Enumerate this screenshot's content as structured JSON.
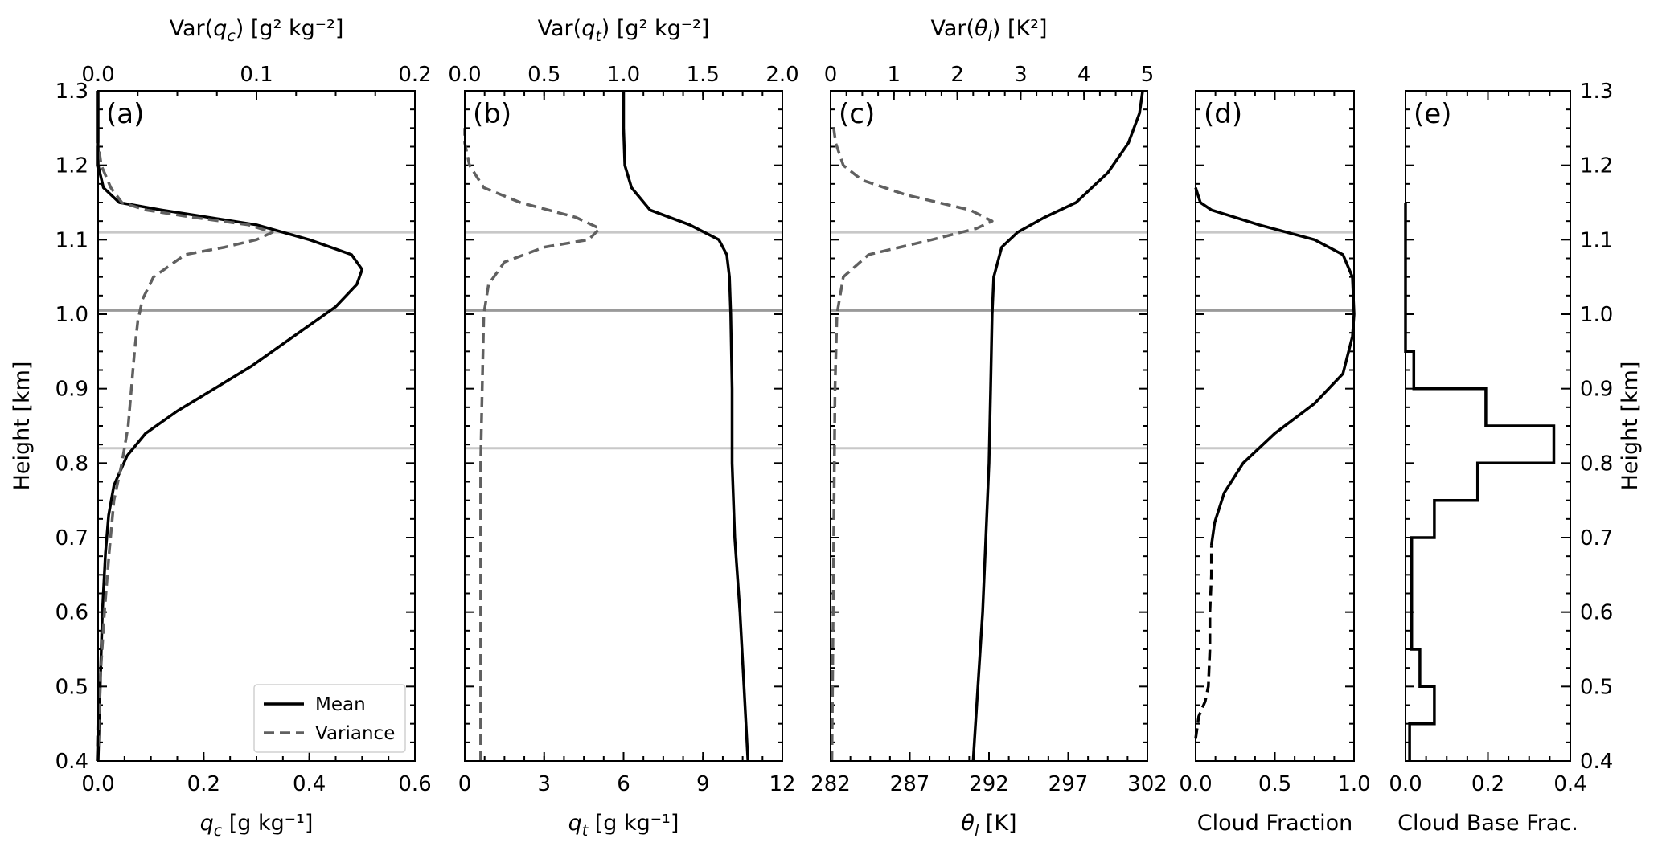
{
  "chart_data": [
    {
      "id": "a",
      "type": "line",
      "panel_label": "(a)",
      "xlabel": "q_c [g kg⁻¹]",
      "x2label": "Var(q_c) [g² kg⁻²]",
      "ylabel": "Height [km]",
      "xlim": [
        0,
        0.6
      ],
      "x2lim": [
        0,
        0.2
      ],
      "ylim": [
        0.4,
        1.3
      ],
      "xticks": [
        "0.0",
        "0.2",
        "0.4",
        "0.6"
      ],
      "x2ticks": [
        "0.0",
        "0.1",
        "0.2"
      ],
      "yticks": [
        "0.4",
        "0.5",
        "0.6",
        "0.7",
        "0.8",
        "0.9",
        "1.0",
        "1.1",
        "1.2",
        "1.3"
      ],
      "legend": {
        "position": "lower-right",
        "entries": [
          "Mean",
          "Variance"
        ]
      },
      "series": [
        {
          "name": "Mean",
          "style": "solid",
          "axis": "bottom",
          "points": [
            [
              0.0,
              0.4
            ],
            [
              0.004,
              0.5
            ],
            [
              0.008,
              0.6
            ],
            [
              0.014,
              0.68
            ],
            [
              0.02,
              0.73
            ],
            [
              0.03,
              0.77
            ],
            [
              0.055,
              0.81
            ],
            [
              0.09,
              0.84
            ],
            [
              0.15,
              0.87
            ],
            [
              0.22,
              0.9
            ],
            [
              0.29,
              0.93
            ],
            [
              0.35,
              0.96
            ],
            [
              0.41,
              0.99
            ],
            [
              0.45,
              1.01
            ],
            [
              0.49,
              1.04
            ],
            [
              0.5,
              1.06
            ],
            [
              0.48,
              1.08
            ],
            [
              0.4,
              1.1
            ],
            [
              0.3,
              1.12
            ],
            [
              0.12,
              1.14
            ],
            [
              0.04,
              1.15
            ],
            [
              0.01,
              1.17
            ],
            [
              0.0,
              1.2
            ],
            [
              0.0,
              1.3
            ]
          ]
        },
        {
          "name": "Variance",
          "style": "dashed",
          "axis": "top",
          "points": [
            [
              0.0,
              0.42
            ],
            [
              0.001,
              0.5
            ],
            [
              0.004,
              0.6
            ],
            [
              0.007,
              0.68
            ],
            [
              0.01,
              0.75
            ],
            [
              0.015,
              0.8
            ],
            [
              0.019,
              0.85
            ],
            [
              0.021,
              0.9
            ],
            [
              0.023,
              0.95
            ],
            [
              0.025,
              0.99
            ],
            [
              0.028,
              1.02
            ],
            [
              0.035,
              1.05
            ],
            [
              0.055,
              1.08
            ],
            [
              0.08,
              1.09
            ],
            [
              0.1,
              1.1
            ],
            [
              0.11,
              1.11
            ],
            [
              0.095,
              1.12
            ],
            [
              0.06,
              1.13
            ],
            [
              0.03,
              1.14
            ],
            [
              0.015,
              1.15
            ],
            [
              0.008,
              1.17
            ],
            [
              0.002,
              1.2
            ],
            [
              0.0,
              1.23
            ]
          ]
        }
      ],
      "hlines": [
        1.11,
        1.005,
        0.82
      ]
    },
    {
      "id": "b",
      "type": "line",
      "panel_label": "(b)",
      "xlabel": "q_t [g kg⁻¹]",
      "x2label": "Var(q_t) [g² kg⁻²]",
      "xlim": [
        0,
        12
      ],
      "x2lim": [
        0,
        2.0
      ],
      "ylim": [
        0.4,
        1.3
      ],
      "xticks": [
        "0",
        "3",
        "6",
        "9",
        "12"
      ],
      "x2ticks": [
        "0.0",
        "0.5",
        "1.0",
        "1.5",
        "2.0"
      ],
      "series": [
        {
          "name": "Mean",
          "style": "solid",
          "axis": "bottom",
          "points": [
            [
              10.7,
              0.4
            ],
            [
              10.55,
              0.5
            ],
            [
              10.4,
              0.6
            ],
            [
              10.2,
              0.7
            ],
            [
              10.1,
              0.8
            ],
            [
              10.1,
              0.9
            ],
            [
              10.05,
              1.0
            ],
            [
              10.0,
              1.05
            ],
            [
              9.9,
              1.08
            ],
            [
              9.6,
              1.1
            ],
            [
              8.5,
              1.12
            ],
            [
              7.0,
              1.14
            ],
            [
              6.3,
              1.17
            ],
            [
              6.05,
              1.2
            ],
            [
              6.0,
              1.25
            ],
            [
              6.0,
              1.3
            ]
          ]
        },
        {
          "name": "Variance",
          "style": "dashed",
          "axis": "top",
          "points": [
            [
              0.1,
              0.4
            ],
            [
              0.1,
              0.5
            ],
            [
              0.1,
              0.6
            ],
            [
              0.1,
              0.7
            ],
            [
              0.1,
              0.8
            ],
            [
              0.11,
              0.9
            ],
            [
              0.12,
              1.0
            ],
            [
              0.15,
              1.04
            ],
            [
              0.25,
              1.07
            ],
            [
              0.5,
              1.09
            ],
            [
              0.78,
              1.1
            ],
            [
              0.85,
              1.115
            ],
            [
              0.7,
              1.13
            ],
            [
              0.35,
              1.15
            ],
            [
              0.12,
              1.17
            ],
            [
              0.03,
              1.2
            ],
            [
              0.0,
              1.23
            ],
            [
              0.0,
              1.25
            ]
          ]
        }
      ],
      "hlines": [
        1.11,
        1.005,
        0.82
      ]
    },
    {
      "id": "c",
      "type": "line",
      "panel_label": "(c)",
      "xlabel": "θ_l [K]",
      "x2label": "Var(θ_l) [K²]",
      "xlim": [
        282,
        302
      ],
      "x2lim": [
        0,
        5
      ],
      "ylim": [
        0.4,
        1.3
      ],
      "xticks": [
        "282",
        "287",
        "292",
        "297",
        "302"
      ],
      "x2ticks": [
        "0",
        "1",
        "2",
        "3",
        "4",
        "5"
      ],
      "series": [
        {
          "name": "Mean",
          "style": "solid",
          "axis": "bottom",
          "points": [
            [
              291.0,
              0.4
            ],
            [
              291.3,
              0.5
            ],
            [
              291.6,
              0.6
            ],
            [
              291.8,
              0.7
            ],
            [
              292.0,
              0.8
            ],
            [
              292.1,
              0.9
            ],
            [
              292.2,
              1.0
            ],
            [
              292.3,
              1.05
            ],
            [
              292.8,
              1.09
            ],
            [
              293.8,
              1.11
            ],
            [
              295.5,
              1.13
            ],
            [
              297.5,
              1.15
            ],
            [
              299.5,
              1.19
            ],
            [
              300.8,
              1.23
            ],
            [
              301.5,
              1.27
            ],
            [
              301.7,
              1.3
            ]
          ]
        },
        {
          "name": "Variance",
          "style": "dashed",
          "axis": "top",
          "points": [
            [
              0.02,
              0.4
            ],
            [
              0.03,
              0.5
            ],
            [
              0.04,
              0.6
            ],
            [
              0.05,
              0.7
            ],
            [
              0.06,
              0.8
            ],
            [
              0.07,
              0.9
            ],
            [
              0.1,
              1.0
            ],
            [
              0.2,
              1.05
            ],
            [
              0.6,
              1.08
            ],
            [
              1.6,
              1.1
            ],
            [
              2.3,
              1.115
            ],
            [
              2.55,
              1.125
            ],
            [
              2.2,
              1.14
            ],
            [
              1.2,
              1.16
            ],
            [
              0.5,
              1.18
            ],
            [
              0.2,
              1.2
            ],
            [
              0.08,
              1.23
            ],
            [
              0.05,
              1.25
            ]
          ]
        }
      ],
      "hlines": [
        1.11,
        1.005,
        0.82
      ]
    },
    {
      "id": "d",
      "type": "line",
      "panel_label": "(d)",
      "xlabel": "Cloud Fraction",
      "xlim": [
        0,
        1.0
      ],
      "ylim": [
        0.4,
        1.3
      ],
      "xticks": [
        "0.0",
        "0.5",
        "1.0"
      ],
      "series": [
        {
          "name": "Cloud fraction (dashed)",
          "style": "dashed",
          "points": [
            [
              0.0,
              0.43
            ],
            [
              0.02,
              0.46
            ],
            [
              0.06,
              0.48
            ],
            [
              0.08,
              0.5
            ],
            [
              0.09,
              0.55
            ],
            [
              0.09,
              0.6
            ],
            [
              0.1,
              0.65
            ],
            [
              0.1,
              0.69
            ]
          ]
        },
        {
          "name": "Cloud fraction",
          "style": "solid",
          "points": [
            [
              0.1,
              0.69
            ],
            [
              0.12,
              0.72
            ],
            [
              0.18,
              0.76
            ],
            [
              0.3,
              0.8
            ],
            [
              0.5,
              0.84
            ],
            [
              0.75,
              0.88
            ],
            [
              0.93,
              0.92
            ],
            [
              0.99,
              0.97
            ],
            [
              1.0,
              1.0
            ],
            [
              0.99,
              1.05
            ],
            [
              0.93,
              1.08
            ],
            [
              0.75,
              1.1
            ],
            [
              0.4,
              1.12
            ],
            [
              0.1,
              1.14
            ],
            [
              0.03,
              1.15
            ],
            [
              0.0,
              1.17
            ]
          ]
        }
      ],
      "hlines": [
        1.11,
        1.005,
        0.82
      ]
    },
    {
      "id": "e",
      "type": "step",
      "panel_label": "(e)",
      "xlabel": "Cloud Base Frac.",
      "ylabel": "Height [km]",
      "xlim": [
        0,
        0.4
      ],
      "ylim": [
        0.4,
        1.3
      ],
      "xticks": [
        "0.0",
        "0.2",
        "0.4"
      ],
      "yticks": [
        "0.4",
        "0.5",
        "0.6",
        "0.7",
        "0.8",
        "0.9",
        "1.0",
        "1.1",
        "1.2",
        "1.3"
      ],
      "bins": [
        {
          "y0": 0.4,
          "y1": 0.45,
          "value": 0.01
        },
        {
          "y0": 0.45,
          "y1": 0.5,
          "value": 0.07
        },
        {
          "y0": 0.5,
          "y1": 0.55,
          "value": 0.035
        },
        {
          "y0": 0.55,
          "y1": 0.7,
          "value": 0.015
        },
        {
          "y0": 0.7,
          "y1": 0.75,
          "value": 0.07
        },
        {
          "y0": 0.75,
          "y1": 0.8,
          "value": 0.175
        },
        {
          "y0": 0.8,
          "y1": 0.85,
          "value": 0.36
        },
        {
          "y0": 0.85,
          "y1": 0.9,
          "value": 0.195
        },
        {
          "y0": 0.9,
          "y1": 0.95,
          "value": 0.02
        },
        {
          "y0": 0.95,
          "y1": 1.0,
          "value": 0.0
        },
        {
          "y0": 1.0,
          "y1": 1.15,
          "value": 0.0
        }
      ]
    }
  ]
}
